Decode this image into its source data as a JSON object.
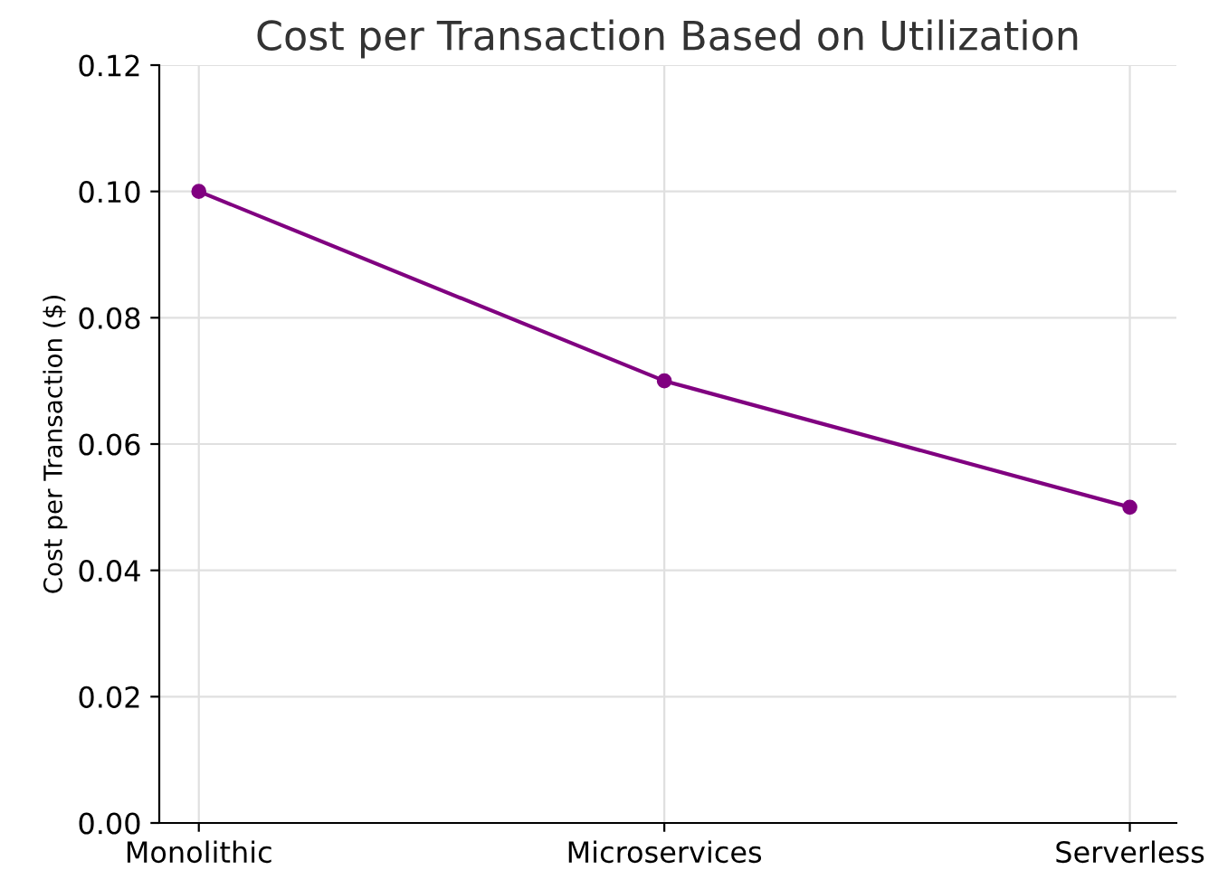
{
  "chart_data": {
    "type": "line",
    "title": "Cost per Transaction Based on Utilization",
    "ylabel": "Cost per Transaction ($)",
    "categories": [
      "Monolithic",
      "Microservices",
      "Serverless"
    ],
    "series": [
      {
        "color": "#800080",
        "values": [
          0.1,
          0.07,
          0.05
        ]
      }
    ],
    "ylim": [
      0.0,
      0.12
    ],
    "yticks": [
      {
        "value": 0.0,
        "label": "0.00"
      },
      {
        "value": 0.02,
        "label": "0.02"
      },
      {
        "value": 0.04,
        "label": "0.04"
      },
      {
        "value": 0.06,
        "label": "0.06"
      },
      {
        "value": 0.08,
        "label": "0.08"
      },
      {
        "value": 0.1,
        "label": "0.10"
      },
      {
        "value": 0.12,
        "label": "0.12"
      }
    ],
    "grid": true,
    "marker": "circle",
    "line_style": "solid"
  }
}
